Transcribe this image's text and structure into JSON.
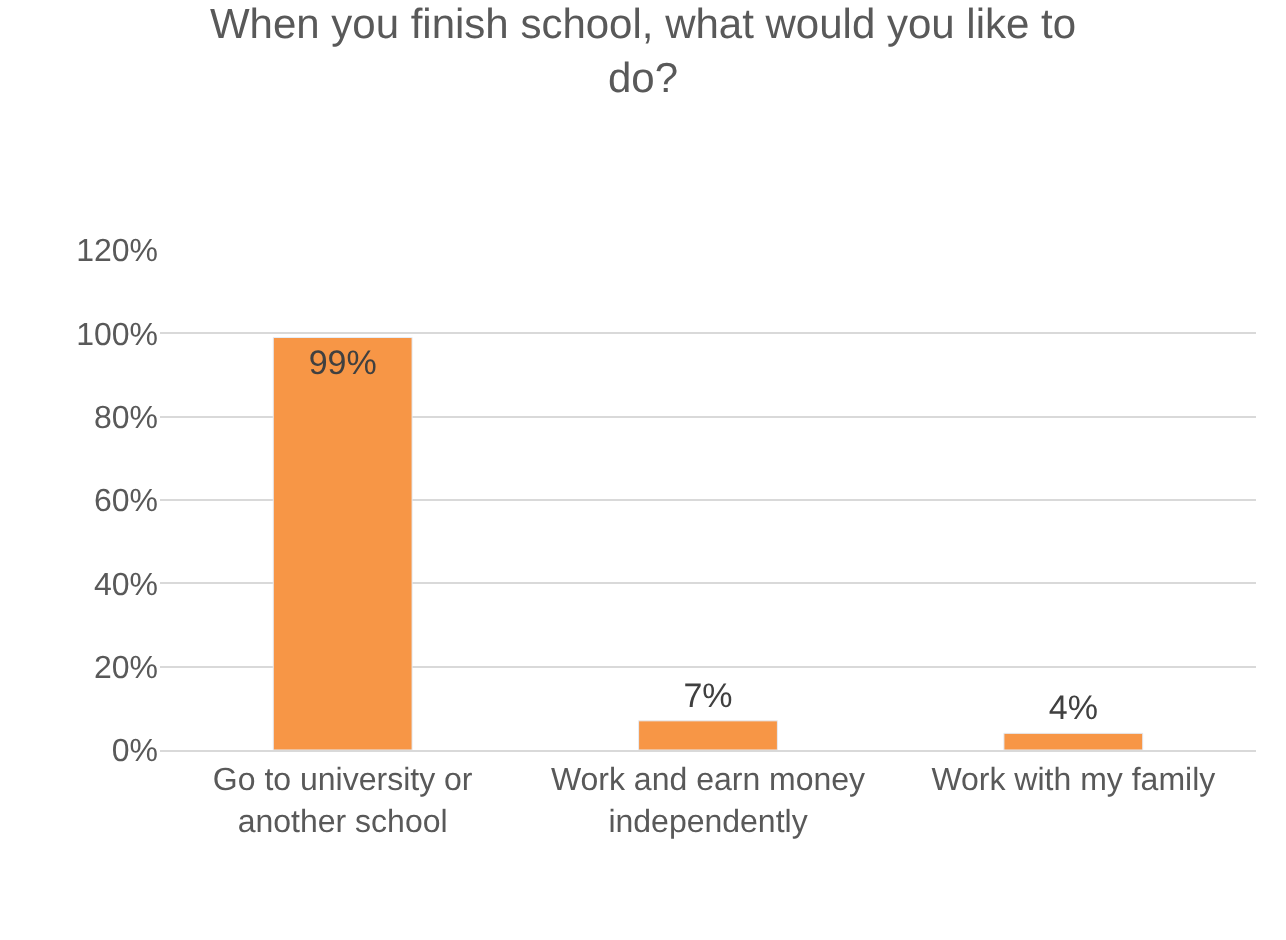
{
  "chart_data": {
    "type": "bar",
    "title": "When you finish school, what would you like to do?",
    "categories": [
      "Go to university or another school",
      "Work and earn money independently",
      "Work with my family"
    ],
    "values": [
      99,
      7,
      4
    ],
    "color": "#f79646",
    "value_labels": [
      "99%",
      "7%",
      "4%"
    ],
    "ylim": [
      0,
      120
    ],
    "yticks": [
      {
        "value": 0,
        "label": "0%"
      },
      {
        "value": 20,
        "label": "20%"
      },
      {
        "value": 40,
        "label": "40%"
      },
      {
        "value": 60,
        "label": "60%"
      },
      {
        "value": 80,
        "label": "80%"
      },
      {
        "value": 100,
        "label": "100%"
      },
      {
        "value": 120,
        "label": "120%"
      }
    ],
    "grid": "y",
    "legend": false
  }
}
